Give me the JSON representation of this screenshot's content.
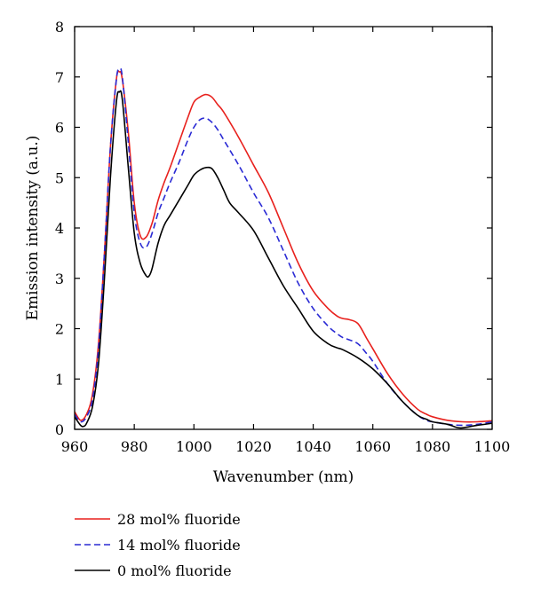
{
  "chart_data": {
    "type": "line",
    "xlabel": "Wavenumber (nm)",
    "ylabel": "Emission intensity (a.u.)",
    "xlim": [
      960,
      1100
    ],
    "ylim": [
      0,
      8
    ],
    "xticks": [
      960,
      980,
      1000,
      1020,
      1040,
      1060,
      1080,
      1100
    ],
    "yticks": [
      0,
      1,
      2,
      3,
      4,
      5,
      6,
      7,
      8
    ],
    "grid": false,
    "legend_placement": "bottom",
    "series": [
      {
        "name": "28 mol% fluoride",
        "color": "#e8211d",
        "dash": "solid",
        "x": [
          960,
          962,
          964,
          966,
          968,
          970,
          972,
          974,
          975,
          976,
          978,
          980,
          982,
          984,
          986,
          988,
          990,
          992,
          995,
          998,
          1000,
          1002,
          1004,
          1006,
          1008,
          1010,
          1015,
          1020,
          1025,
          1030,
          1035,
          1040,
          1045,
          1048,
          1050,
          1052,
          1055,
          1058,
          1060,
          1065,
          1070,
          1075,
          1078,
          1080,
          1085,
          1090,
          1095,
          1100
        ],
        "y": [
          0.35,
          0.18,
          0.3,
          0.7,
          1.7,
          3.5,
          5.6,
          6.95,
          7.1,
          6.95,
          5.9,
          4.5,
          3.85,
          3.82,
          4.1,
          4.55,
          4.9,
          5.2,
          5.7,
          6.2,
          6.5,
          6.6,
          6.65,
          6.6,
          6.45,
          6.3,
          5.8,
          5.25,
          4.7,
          4.0,
          3.3,
          2.75,
          2.4,
          2.25,
          2.2,
          2.18,
          2.1,
          1.8,
          1.6,
          1.1,
          0.7,
          0.4,
          0.3,
          0.25,
          0.18,
          0.15,
          0.15,
          0.17
        ]
      },
      {
        "name": "14 mol% fluoride",
        "color": "#2a2ad4",
        "dash": "dashed",
        "x": [
          960,
          962,
          964,
          966,
          968,
          970,
          972,
          974,
          975,
          976,
          978,
          980,
          982,
          984,
          986,
          988,
          990,
          992,
          995,
          998,
          1000,
          1002,
          1004,
          1006,
          1008,
          1010,
          1015,
          1020,
          1025,
          1030,
          1035,
          1040,
          1045,
          1048,
          1050,
          1052,
          1055,
          1058,
          1060,
          1065,
          1070,
          1075,
          1078,
          1080,
          1085,
          1090,
          1095,
          1100
        ],
        "y": [
          0.3,
          0.15,
          0.25,
          0.6,
          1.6,
          3.5,
          5.6,
          6.95,
          7.15,
          7.0,
          5.7,
          4.3,
          3.7,
          3.62,
          3.9,
          4.3,
          4.6,
          4.9,
          5.3,
          5.75,
          6.0,
          6.15,
          6.18,
          6.1,
          5.95,
          5.75,
          5.25,
          4.7,
          4.2,
          3.55,
          2.9,
          2.4,
          2.05,
          1.9,
          1.82,
          1.78,
          1.7,
          1.5,
          1.35,
          0.9,
          0.55,
          0.28,
          0.18,
          0.15,
          0.1,
          0.08,
          0.1,
          0.15
        ]
      },
      {
        "name": "0 mol% fluoride",
        "color": "#000000",
        "dash": "solid",
        "x": [
          960,
          962,
          963,
          964,
          966,
          968,
          970,
          972,
          974,
          975,
          976,
          978,
          980,
          982,
          984,
          985,
          986,
          988,
          990,
          992,
          995,
          998,
          1000,
          1002,
          1004,
          1006,
          1008,
          1010,
          1012,
          1015,
          1020,
          1025,
          1030,
          1035,
          1040,
          1045,
          1048,
          1050,
          1055,
          1060,
          1065,
          1070,
          1075,
          1078,
          1080,
          1085,
          1088,
          1090,
          1095,
          1100
        ],
        "y": [
          0.25,
          0.08,
          0.06,
          0.12,
          0.45,
          1.3,
          3.0,
          5.0,
          6.5,
          6.7,
          6.55,
          5.2,
          3.9,
          3.3,
          3.05,
          3.05,
          3.2,
          3.7,
          4.05,
          4.25,
          4.55,
          4.85,
          5.05,
          5.15,
          5.2,
          5.18,
          5.0,
          4.75,
          4.5,
          4.3,
          3.95,
          3.4,
          2.85,
          2.4,
          1.95,
          1.7,
          1.62,
          1.58,
          1.42,
          1.2,
          0.9,
          0.55,
          0.28,
          0.2,
          0.15,
          0.1,
          0.04,
          0.03,
          0.08,
          0.12
        ]
      }
    ]
  }
}
